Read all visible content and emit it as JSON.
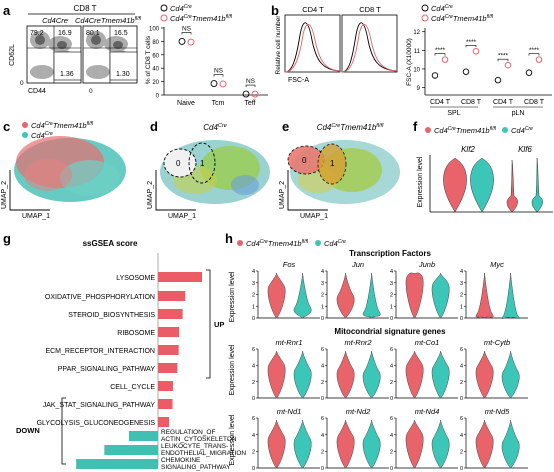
{
  "panels": {
    "a": "a",
    "b": "b",
    "c": "c",
    "d": "d",
    "e": "e",
    "f": "f",
    "g": "g",
    "h": "h"
  },
  "colors": {
    "ko": "#e8646a",
    "ctrl": "#3cc6b8",
    "bar_up": "#ec5c66",
    "bar_down": "#41bfb0"
  },
  "a": {
    "header": "CD8 T",
    "col1": "Cd4Cre",
    "col2_base": "Cd4Cre",
    "col2_tail": "Tmem41b",
    "col2_sup": "fl/fl",
    "ylab": "CD62L",
    "xlab": "CD44",
    "f1": {
      "q1": "79.2",
      "q2": "16.9",
      "q3": "1.36"
    },
    "f2": {
      "q1": "80.1",
      "q2": "16.5",
      "q3": "1.30"
    },
    "zero": "0",
    "legend": [
      "Cd4Cre",
      "Cd4CreTmem41b fl/fl"
    ],
    "legend_base": "Cd4",
    "legend_sup": "Cre",
    "legend2_tail": "Tmem41b",
    "legend2_sup": "fl/fl",
    "chart_ylabel": "% of CD8 T cells",
    "yticks": [
      "0",
      "20",
      "40",
      "60",
      "80",
      "100"
    ],
    "groups": [
      "Naive",
      "Tcm",
      "Teff"
    ],
    "sig": [
      "NS",
      "NS",
      "NS"
    ]
  },
  "b": {
    "h1": "CD4 T",
    "h2": "CD8 T",
    "ylab": "Relative cell number",
    "xlab": "FSC-A",
    "legend_base": "Cd4",
    "legend_sup": "Cre",
    "legend2_tail": "Tmem41b",
    "legend2_sup": "fl/fl",
    "chart_ylabel": "FSC-A (X10000)",
    "yticks": [
      "9",
      "10",
      "11",
      "12"
    ],
    "sig": [
      "****",
      "****",
      "****",
      "****"
    ],
    "cats": [
      "CD4 T",
      "CD8 T",
      "CD4 T",
      "CD8 T"
    ],
    "tissues": [
      "SPL",
      "pLN"
    ]
  },
  "c": {
    "leg1_base": "Cd4",
    "leg1_sup": "Cre",
    "leg1_tail": "Tmem41b",
    "leg1_sup2": "fl/fl",
    "leg2_base": "Cd4",
    "leg2_sup": "Cre",
    "x": "UMAP_1",
    "y": "UMAP_2"
  },
  "d": {
    "title_base": "Cd4",
    "title_sup": "Cre",
    "c0": "0",
    "c1": "1",
    "x": "UMAP_1",
    "y": "UMAP_2"
  },
  "e": {
    "title_base": "Cd4",
    "title_sup": "Cre",
    "title_tail": "Tmem41b",
    "title_sup2": "fl/fl",
    "c0": "0",
    "c1": "1",
    "x": "UMAP_1",
    "y": "UMAP_2"
  },
  "f": {
    "leg1_base": "Cd4",
    "leg1_sup": "Cre",
    "leg1_tail": "Tmem41b",
    "leg1_sup2": "fl/fl",
    "leg2_base": "Cd4",
    "leg2_sup": "Cre",
    "g1": "Klf2",
    "g2": "Klf6",
    "ylabel": "Expression level"
  },
  "chart_data": {
    "type": "bar",
    "title": "ssGSEA score",
    "up_label": "UP",
    "down_label": "DOWN",
    "categories": [
      "LYSOSOME",
      "OXIDATIVE_PHOSPHORYLATION",
      "STEROID_BIOSYNTHESIS",
      "RIBOSOME",
      "ECM_RECEPTOR_INTERACTION",
      "PPAR_SIGNALING_PATHWAY",
      "CELL_CYCLE",
      "JAK_STAT_SIGNALING_PATHWAY",
      "GLYCOLYSIS_GLUCONEOGENESIS"
    ],
    "values": [
      1.0,
      0.62,
      0.56,
      0.48,
      0.47,
      0.44,
      0.34,
      0.33,
      0.25
    ],
    "down_categories": [
      [
        "REGULATION_OF",
        "ACTIN_CYTOSKELETON"
      ],
      [
        "LEUKOCYTE_TRANS-",
        "ENDOTHELIAL_MIGRATION"
      ],
      [
        "CHEMOKINE",
        "SIGNALING_PATHWAY"
      ]
    ],
    "down_values": [
      -0.33,
      -0.61,
      -0.93
    ]
  },
  "h": {
    "leg1_base": "Cd4",
    "leg1_sup": "Cre",
    "leg1_tail": "Tmem41b",
    "leg1_sup2": "fl/fl",
    "leg2_base": "Cd4",
    "leg2_sup": "Cre",
    "tf_title": "Transcription Factors",
    "mt_title": "Mitocondrial signature genes",
    "ylabel": "Expression level",
    "tf_genes": [
      "Fos",
      "Jun",
      "Junb",
      "Myc"
    ],
    "mt1_genes": [
      "mt-Rnr1",
      "mt-Rnr2",
      "mt-Co1",
      "mt-Cytb"
    ],
    "mt2_genes": [
      "mt-Nd1",
      "mt-Nd2",
      "mt-Nd4",
      "mt-Nd5"
    ],
    "tf_yticks": [
      [
        "0",
        "1",
        "2",
        "3",
        "4"
      ],
      [
        "0",
        "1",
        "2",
        "3",
        "4"
      ],
      [
        "0",
        "1",
        "2",
        "3",
        "4"
      ],
      [
        "0",
        "1",
        "2",
        "3",
        "4"
      ]
    ],
    "mt_yticks": [
      "0",
      "2",
      "4",
      "6"
    ]
  }
}
